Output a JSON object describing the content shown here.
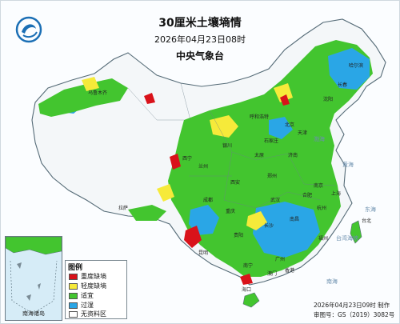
{
  "header": {
    "title": "30厘米土壤墒情",
    "datetime": "2026年04月23日08时",
    "issuer": "中央气象台"
  },
  "legend": {
    "title": "图例",
    "items": [
      {
        "label": "重度缺墒",
        "color": "#d9121a"
      },
      {
        "label": "轻度缺墒",
        "color": "#f6ea3a"
      },
      {
        "label": "适宜",
        "color": "#43c52f"
      },
      {
        "label": "过湿",
        "color": "#2aa6e6"
      },
      {
        "label": "无资料区",
        "color": "#ffffff"
      }
    ]
  },
  "inset": {
    "label": "南海诸岛"
  },
  "footer": {
    "made": "2026年04月23日09时 制作",
    "approval": "审图号：GS（2019）3082号"
  },
  "places": {
    "beijing": "北京",
    "tianjin": "天津",
    "shijiazhuang": "石家庄",
    "jinan": "济南",
    "taiyuan": "太原",
    "zhengzhou": "郑州",
    "xian": "西安",
    "lanzhou": "兰州",
    "yinchuan": "银川",
    "xining": "西宁",
    "nanjing": "南京",
    "shanghai": "上海",
    "hefei": "合肥",
    "wuhan": "武汉",
    "hangzhou": "杭州",
    "nanchang": "南昌",
    "changsha": "长沙",
    "chongqing": "重庆",
    "chengdu": "成都",
    "guiyang": "贵阳",
    "kunming": "昆明",
    "nanning": "南宁",
    "guangzhou": "广州",
    "fuzhou": "福州",
    "taibei": "台北",
    "xianggang": "香港",
    "aomen": "澳门",
    "haikou": "海口",
    "lasa": "拉萨",
    "wulumuqi": "乌鲁木齐",
    "huhehaote": "呼和浩特",
    "haerbin": "哈尔滨",
    "changchun": "长春",
    "shenyang": "沈阳"
  },
  "seas": {
    "bohai": "渤海",
    "huanghai": "黄海",
    "donghai": "东海",
    "nanhai": "南海",
    "taiwan_strait": "台湾海峡"
  }
}
